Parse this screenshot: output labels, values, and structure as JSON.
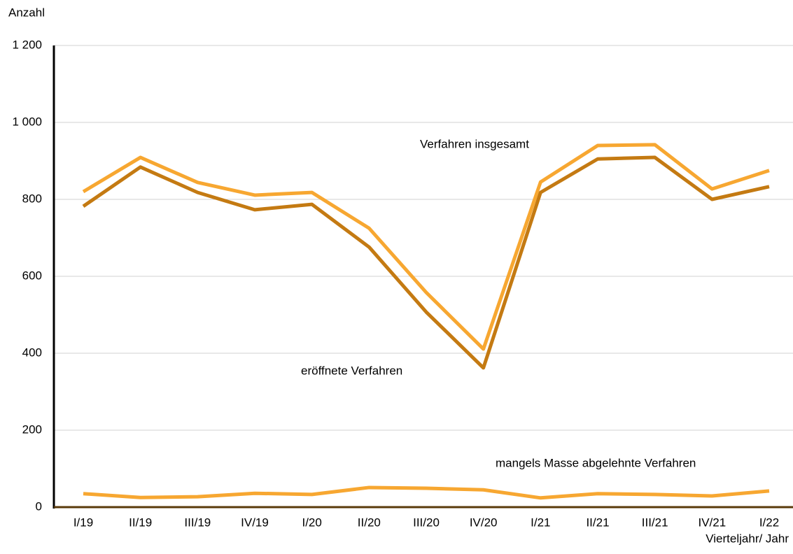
{
  "chart_data": {
    "type": "line",
    "y_label": "Anzahl",
    "x_label": "Vierteljahr/ Jahr",
    "categories": [
      "I/19",
      "II/19",
      "III/19",
      "IV/19",
      "I/20",
      "II/20",
      "III/20",
      "IV/20",
      "I/21",
      "II/21",
      "III/21",
      "IV/21",
      "I/22"
    ],
    "series": [
      {
        "name": "Verfahren insgesamt",
        "color": "#f7a731",
        "values": [
          820,
          909,
          844,
          811,
          818,
          725,
          558,
          411,
          845,
          940,
          942,
          827,
          875
        ]
      },
      {
        "name": "eröffnete Verfahren",
        "color": "#c47a12",
        "values": [
          782,
          884,
          818,
          773,
          787,
          676,
          507,
          362,
          818,
          905,
          909,
          800,
          833
        ]
      },
      {
        "name": "mangels Masse abgelehnte Verfahren",
        "color": "#f7a731",
        "values": [
          35,
          25,
          27,
          36,
          33,
          51,
          49,
          45,
          24,
          35,
          33,
          29,
          42
        ]
      }
    ],
    "ylim": [
      0,
      1200
    ],
    "yticks": [
      0,
      200,
      400,
      600,
      800,
      {
        "value": 1000,
        "label": "1 000"
      },
      {
        "value": 1200,
        "label": "1 200"
      }
    ],
    "grid": true
  }
}
